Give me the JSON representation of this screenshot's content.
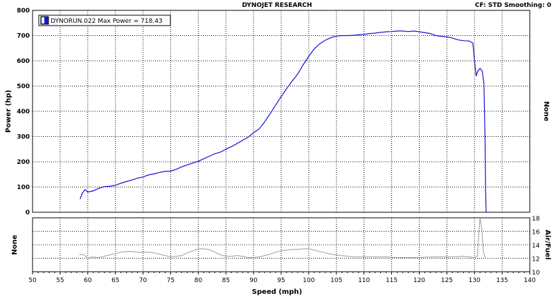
{
  "header": {
    "title": "DYNOJET RESEARCH",
    "settings": "CF: STD  Smoothing: 0"
  },
  "colors": {
    "power_line": "#1010d0",
    "afr_line": "#9a9a9a",
    "legend_swatch": "#1a1ae0",
    "grid": "#000000"
  },
  "chart_data": [
    {
      "type": "line",
      "ylabel": "Power (hp)",
      "right_label": "None",
      "xlim": [
        50,
        140
      ],
      "ylim": [
        0,
        800
      ],
      "y_ticks": [
        0,
        100,
        200,
        300,
        400,
        500,
        600,
        700,
        800
      ],
      "grid": true,
      "legend": "top-left",
      "series": [
        {
          "name": "DYNORUN.022 Max Power = 718.43",
          "x": [
            58.6,
            59.0,
            59.5,
            60.0,
            61.0,
            62.0,
            63.0,
            64.0,
            65.0,
            66.0,
            67.0,
            68.0,
            69.0,
            70.0,
            71.0,
            72.0,
            73.0,
            74.0,
            75.0,
            76.0,
            77.0,
            78.0,
            79.0,
            80.0,
            81.0,
            82.0,
            83.0,
            84.0,
            85.0,
            86.0,
            87.0,
            88.0,
            89.0,
            90.0,
            91.0,
            92.0,
            93.0,
            94.0,
            95.0,
            96.0,
            97.0,
            98.0,
            99.0,
            100.0,
            101.0,
            102.0,
            103.0,
            104.0,
            105.0,
            106.0,
            107.0,
            108.0,
            109.0,
            110.0,
            111.0,
            112.0,
            113.0,
            114.0,
            115.0,
            116.0,
            117.0,
            118.0,
            119.0,
            120.0,
            121.0,
            122.0,
            123.0,
            124.0,
            125.0,
            126.0,
            127.0,
            128.0,
            129.0,
            129.7,
            130.0,
            130.3,
            130.6,
            131.0,
            131.4,
            131.7,
            131.9,
            132.0,
            132.1
          ],
          "y": [
            52,
            75,
            90,
            80,
            85,
            95,
            102,
            103,
            107,
            115,
            122,
            128,
            135,
            140,
            148,
            152,
            158,
            162,
            163,
            170,
            180,
            188,
            195,
            202,
            212,
            222,
            232,
            238,
            250,
            260,
            272,
            285,
            297,
            315,
            330,
            358,
            390,
            425,
            458,
            490,
            520,
            548,
            585,
            618,
            648,
            668,
            682,
            692,
            698,
            700,
            700,
            701,
            703,
            705,
            708,
            710,
            713,
            715,
            716,
            718,
            718,
            716,
            718,
            715,
            712,
            708,
            700,
            697,
            695,
            690,
            683,
            680,
            679,
            670,
            600,
            540,
            560,
            570,
            560,
            510,
            300,
            90,
            0
          ]
        }
      ]
    },
    {
      "type": "line",
      "ylabel": "Air/Fuel",
      "left_label": "None",
      "xlabel": "Speed (mph)",
      "xlim": [
        50,
        140
      ],
      "ylim": [
        10,
        18
      ],
      "x_ticks": [
        50,
        55,
        60,
        65,
        70,
        75,
        80,
        85,
        90,
        95,
        100,
        105,
        110,
        115,
        120,
        125,
        130,
        135,
        140
      ],
      "y_ticks": [
        10,
        12,
        14,
        16,
        18
      ],
      "grid": true,
      "series": [
        {
          "x": [
            58.5,
            59.0,
            60.0,
            61.0,
            62.0,
            63.0,
            64.0,
            65.0,
            66.0,
            67.0,
            68.0,
            69.0,
            70.0,
            71.0,
            72.0,
            73.0,
            74.0,
            75.0,
            76.0,
            77.0,
            78.0,
            79.0,
            80.0,
            81.0,
            82.0,
            83.0,
            84.0,
            85.0,
            86.0,
            87.0,
            88.0,
            89.0,
            90.0,
            91.0,
            92.0,
            93.0,
            94.0,
            95.0,
            96.0,
            97.0,
            98.0,
            99.0,
            100.0,
            101.0,
            102.0,
            103.0,
            104.0,
            105.0,
            106.0,
            107.0,
            108.0,
            109.0,
            110.0,
            112.0,
            114.0,
            116.0,
            118.0,
            120.0,
            122.0,
            124.0,
            126.0,
            128.0,
            129.0,
            130.0,
            130.5,
            131.0,
            131.3,
            131.6,
            131.9,
            132.1
          ],
          "y": [
            12.5,
            12.6,
            12.1,
            12.2,
            12.1,
            12.3,
            12.5,
            12.7,
            12.9,
            13.0,
            13.0,
            12.9,
            12.9,
            12.9,
            12.8,
            12.6,
            12.4,
            12.2,
            12.3,
            12.4,
            12.8,
            13.1,
            13.4,
            13.4,
            13.3,
            12.9,
            12.5,
            12.3,
            12.3,
            12.4,
            12.3,
            12.1,
            12.1,
            12.2,
            12.4,
            12.6,
            12.9,
            13.1,
            13.2,
            13.3,
            13.3,
            13.4,
            13.4,
            13.2,
            13.0,
            12.8,
            12.6,
            12.5,
            12.4,
            12.3,
            12.2,
            12.2,
            12.2,
            12.2,
            12.2,
            12.1,
            12.1,
            12.1,
            12.2,
            12.2,
            12.2,
            12.3,
            12.2,
            12.1,
            12.3,
            18.0,
            16.5,
            13.0,
            12.1,
            12.0
          ]
        }
      ]
    }
  ]
}
